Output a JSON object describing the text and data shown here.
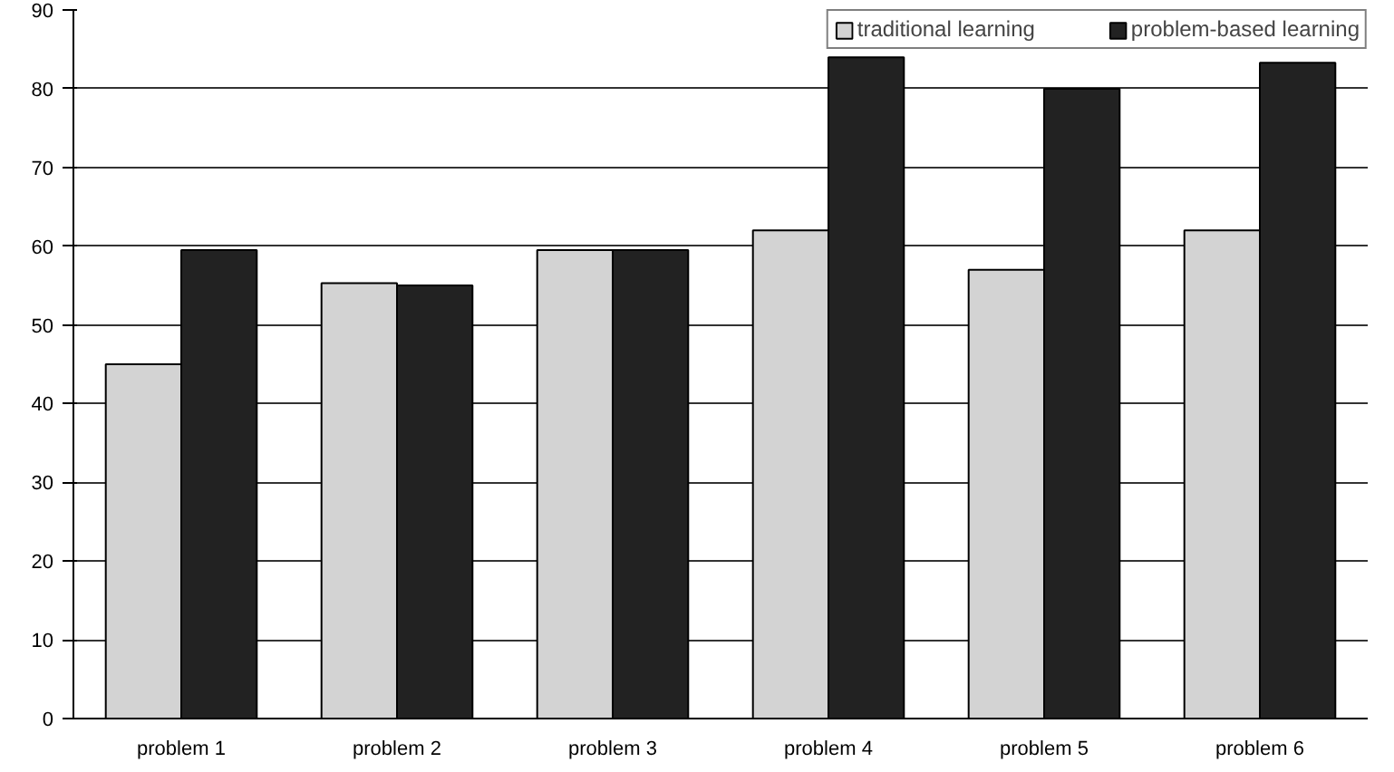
{
  "chart_data": {
    "type": "bar",
    "categories": [
      "problem 1",
      "problem 2",
      "problem 3",
      "problem 4",
      "problem 5",
      "problem 6"
    ],
    "series": [
      {
        "name": "traditional learning",
        "color": "#d3d3d3",
        "values": [
          45,
          55.3,
          59.5,
          62,
          57,
          62
        ]
      },
      {
        "name": "problem-based learning",
        "color": "#222222",
        "values": [
          59.5,
          55,
          59.5,
          84,
          80,
          83.3
        ]
      }
    ],
    "ylim": [
      0,
      90
    ],
    "yticks": [
      0,
      10,
      20,
      30,
      40,
      50,
      60,
      70,
      80,
      90
    ],
    "grid": "y",
    "legend": "top right"
  }
}
